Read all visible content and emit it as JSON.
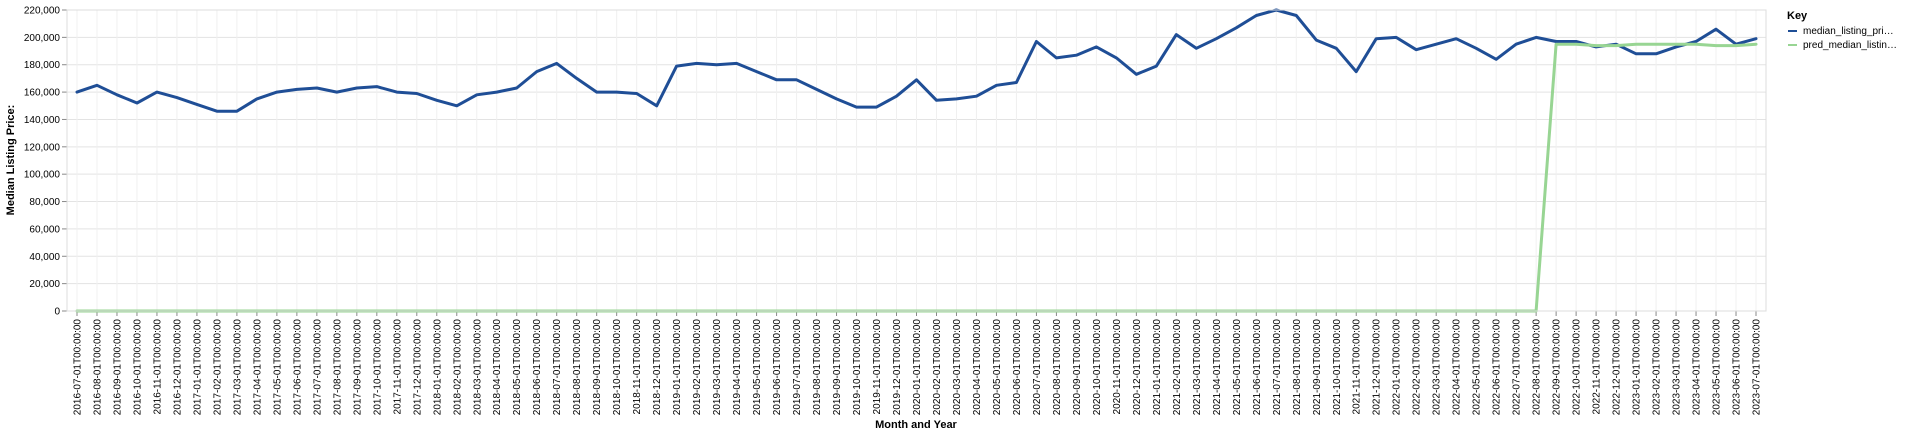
{
  "chart_data": {
    "type": "line",
    "xlabel": "Month and Year",
    "ylabel": "Median Listing Price:",
    "ylim": [
      0,
      220000
    ],
    "yticks": [
      0,
      20000,
      40000,
      60000,
      80000,
      100000,
      120000,
      140000,
      160000,
      180000,
      200000,
      220000
    ],
    "ytick_labels": [
      "0",
      "20,000",
      "40,000",
      "60,000",
      "80,000",
      "100,000",
      "120,000",
      "140,000",
      "160,000",
      "180,000",
      "200,000",
      "220,000"
    ],
    "grid": true,
    "legend": {
      "title": "Key",
      "placement": "right",
      "entries": [
        "median_listing_pri…",
        "pred_median_listin…"
      ]
    },
    "x": [
      "2016-07-01T00:00:00",
      "2016-08-01T00:00:00",
      "2016-09-01T00:00:00",
      "2016-10-01T00:00:00",
      "2016-11-01T00:00:00",
      "2016-12-01T00:00:00",
      "2017-01-01T00:00:00",
      "2017-02-01T00:00:00",
      "2017-03-01T00:00:00",
      "2017-04-01T00:00:00",
      "2017-05-01T00:00:00",
      "2017-06-01T00:00:00",
      "2017-07-01T00:00:00",
      "2017-08-01T00:00:00",
      "2017-09-01T00:00:00",
      "2017-10-01T00:00:00",
      "2017-11-01T00:00:00",
      "2017-12-01T00:00:00",
      "2018-01-01T00:00:00",
      "2018-02-01T00:00:00",
      "2018-03-01T00:00:00",
      "2018-04-01T00:00:00",
      "2018-05-01T00:00:00",
      "2018-06-01T00:00:00",
      "2018-07-01T00:00:00",
      "2018-08-01T00:00:00",
      "2018-09-01T00:00:00",
      "2018-10-01T00:00:00",
      "2018-11-01T00:00:00",
      "2018-12-01T00:00:00",
      "2019-01-01T00:00:00",
      "2019-02-01T00:00:00",
      "2019-03-01T00:00:00",
      "2019-04-01T00:00:00",
      "2019-05-01T00:00:00",
      "2019-06-01T00:00:00",
      "2019-07-01T00:00:00",
      "2019-08-01T00:00:00",
      "2019-09-01T00:00:00",
      "2019-10-01T00:00:00",
      "2019-11-01T00:00:00",
      "2019-12-01T00:00:00",
      "2020-01-01T00:00:00",
      "2020-02-01T00:00:00",
      "2020-03-01T00:00:00",
      "2020-04-01T00:00:00",
      "2020-05-01T00:00:00",
      "2020-06-01T00:00:00",
      "2020-07-01T00:00:00",
      "2020-08-01T00:00:00",
      "2020-09-01T00:00:00",
      "2020-10-01T00:00:00",
      "2020-11-01T00:00:00",
      "2020-12-01T00:00:00",
      "2021-01-01T00:00:00",
      "2021-02-01T00:00:00",
      "2021-03-01T00:00:00",
      "2021-04-01T00:00:00",
      "2021-05-01T00:00:00",
      "2021-06-01T00:00:00",
      "2021-07-01T00:00:00",
      "2021-08-01T00:00:00",
      "2021-09-01T00:00:00",
      "2021-10-01T00:00:00",
      "2021-11-01T00:00:00",
      "2021-12-01T00:00:00",
      "2022-01-01T00:00:00",
      "2022-02-01T00:00:00",
      "2022-03-01T00:00:00",
      "2022-04-01T00:00:00",
      "2022-05-01T00:00:00",
      "2022-06-01T00:00:00",
      "2022-07-01T00:00:00",
      "2022-08-01T00:00:00",
      "2022-09-01T00:00:00",
      "2022-10-01T00:00:00",
      "2022-11-01T00:00:00",
      "2022-12-01T00:00:00",
      "2023-01-01T00:00:00",
      "2023-02-01T00:00:00",
      "2023-03-01T00:00:00",
      "2023-04-01T00:00:00",
      "2023-05-01T00:00:00",
      "2023-06-01T00:00:00",
      "2023-07-01T00:00:00"
    ],
    "series": [
      {
        "name": "median_listing_pri…",
        "color": "#1f4e96",
        "values": [
          160000,
          165000,
          158000,
          152000,
          160000,
          156000,
          151000,
          146000,
          146000,
          155000,
          160000,
          162000,
          163000,
          160000,
          163000,
          164000,
          160000,
          159000,
          154000,
          150000,
          158000,
          160000,
          163000,
          175000,
          181000,
          170000,
          160000,
          160000,
          159000,
          150000,
          179000,
          181000,
          180000,
          181000,
          175000,
          169000,
          169000,
          162000,
          155000,
          149000,
          149000,
          157000,
          169000,
          154000,
          155000,
          157000,
          165000,
          167000,
          197000,
          185000,
          187000,
          193000,
          185000,
          173000,
          179000,
          202000,
          192000,
          199000,
          207000,
          216000,
          220000,
          216000,
          198000,
          192000,
          175000,
          199000,
          200000,
          191000,
          195000,
          199000,
          192000,
          184000,
          195000,
          200000,
          197000,
          197000,
          193000,
          195000,
          188000,
          188000,
          193000,
          197000,
          206000,
          195000,
          199000
        ]
      },
      {
        "name": "pred_median_listin…",
        "color": "#98d593",
        "values": [
          0,
          0,
          0,
          0,
          0,
          0,
          0,
          0,
          0,
          0,
          0,
          0,
          0,
          0,
          0,
          0,
          0,
          0,
          0,
          0,
          0,
          0,
          0,
          0,
          0,
          0,
          0,
          0,
          0,
          0,
          0,
          0,
          0,
          0,
          0,
          0,
          0,
          0,
          0,
          0,
          0,
          0,
          0,
          0,
          0,
          0,
          0,
          0,
          0,
          0,
          0,
          0,
          0,
          0,
          0,
          0,
          0,
          0,
          0,
          0,
          0,
          0,
          0,
          0,
          0,
          0,
          0,
          0,
          0,
          0,
          0,
          0,
          0,
          0,
          195000,
          195000,
          194000,
          194000,
          195000,
          195000,
          195000,
          195000,
          194000,
          194000,
          195000
        ]
      }
    ]
  }
}
